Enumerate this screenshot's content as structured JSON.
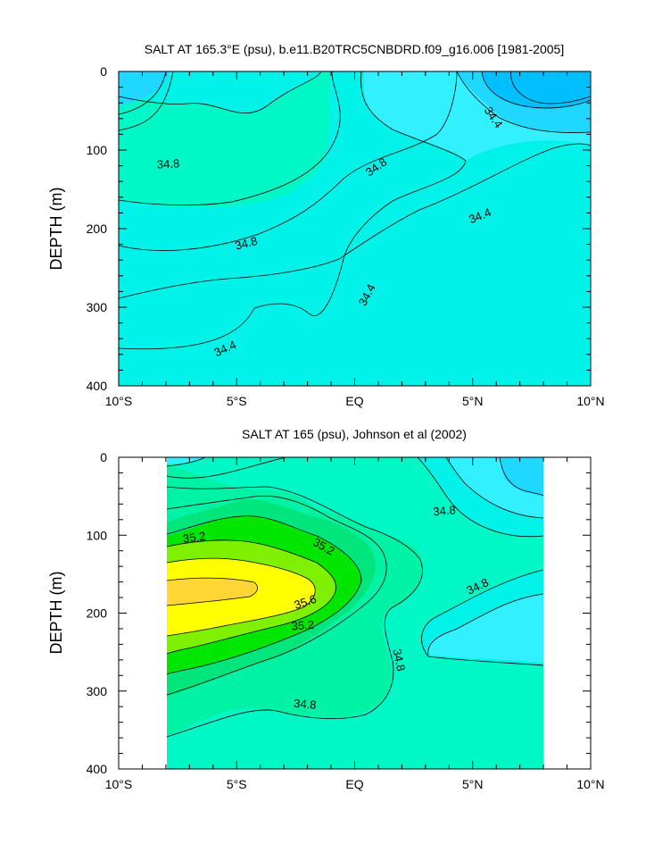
{
  "chart_data": [
    {
      "type": "contour",
      "title": "SALT AT 165.3°E (psu), b.e11.B20TRC5CNBDRD.f09_g16.006 [1981-2005]",
      "xlabel": "",
      "ylabel": "DEPTH (m)",
      "xlim": [
        -10,
        10
      ],
      "ylim": [
        400,
        0
      ],
      "x_ticks": [
        -10,
        -5,
        0,
        5,
        10
      ],
      "x_tick_labels": [
        "10°S",
        "5°S",
        "EQ",
        "5°N",
        "10°N"
      ],
      "y_ticks": [
        0,
        100,
        200,
        300,
        400
      ],
      "y_tick_labels": [
        "0",
        "100",
        "200",
        "300",
        "400"
      ],
      "data_x_range": [
        -10,
        10
      ],
      "contour_interval": 0.2,
      "contour_labels": [
        {
          "x": -7.9,
          "y": 117,
          "text": "34.8",
          "angle": -3
        },
        {
          "x": 0.9,
          "y": 121,
          "text": "34.8",
          "angle": -35
        },
        {
          "x": 5.9,
          "y": 58,
          "text": "34.4",
          "angle": 55
        },
        {
          "x": -4.6,
          "y": 218,
          "text": "34.8",
          "angle": -14
        },
        {
          "x": 5.3,
          "y": 183,
          "text": "34.4",
          "angle": -22
        },
        {
          "x": 0.5,
          "y": 284,
          "text": "34.4",
          "angle": -62
        },
        {
          "x": -5.5,
          "y": 352,
          "text": "34.4",
          "angle": -24
        }
      ]
    },
    {
      "type": "contour",
      "title": "SALT AT 165 (psu), Johnson et al (2002)",
      "xlabel": "",
      "ylabel": "DEPTH (m)",
      "xlim": [
        -10,
        10
      ],
      "ylim": [
        400,
        0
      ],
      "x_ticks": [
        -10,
        -5,
        0,
        5,
        10
      ],
      "x_tick_labels": [
        "10°S",
        "5°S",
        "EQ",
        "5°N",
        "10°N"
      ],
      "y_ticks": [
        0,
        100,
        200,
        300,
        400
      ],
      "y_tick_labels": [
        "0",
        "100",
        "200",
        "300",
        "400"
      ],
      "data_x_range": [
        -8,
        8
      ],
      "contour_interval": 0.2,
      "contour_labels": [
        {
          "x": -6.8,
          "y": 102,
          "text": "35.2",
          "angle": -8
        },
        {
          "x": -1.3,
          "y": 114,
          "text": "35.2",
          "angle": 30
        },
        {
          "x": 3.8,
          "y": 68,
          "text": "34.8",
          "angle": -5
        },
        {
          "x": -2.1,
          "y": 185,
          "text": "35.6",
          "angle": -18
        },
        {
          "x": -2.2,
          "y": 215,
          "text": "35.2",
          "angle": -4
        },
        {
          "x": 5.2,
          "y": 165,
          "text": "34.8",
          "angle": -25
        },
        {
          "x": 1.9,
          "y": 260,
          "text": "34.8",
          "angle": 78
        },
        {
          "x": -2.1,
          "y": 316,
          "text": "34.8",
          "angle": 5
        }
      ]
    }
  ]
}
